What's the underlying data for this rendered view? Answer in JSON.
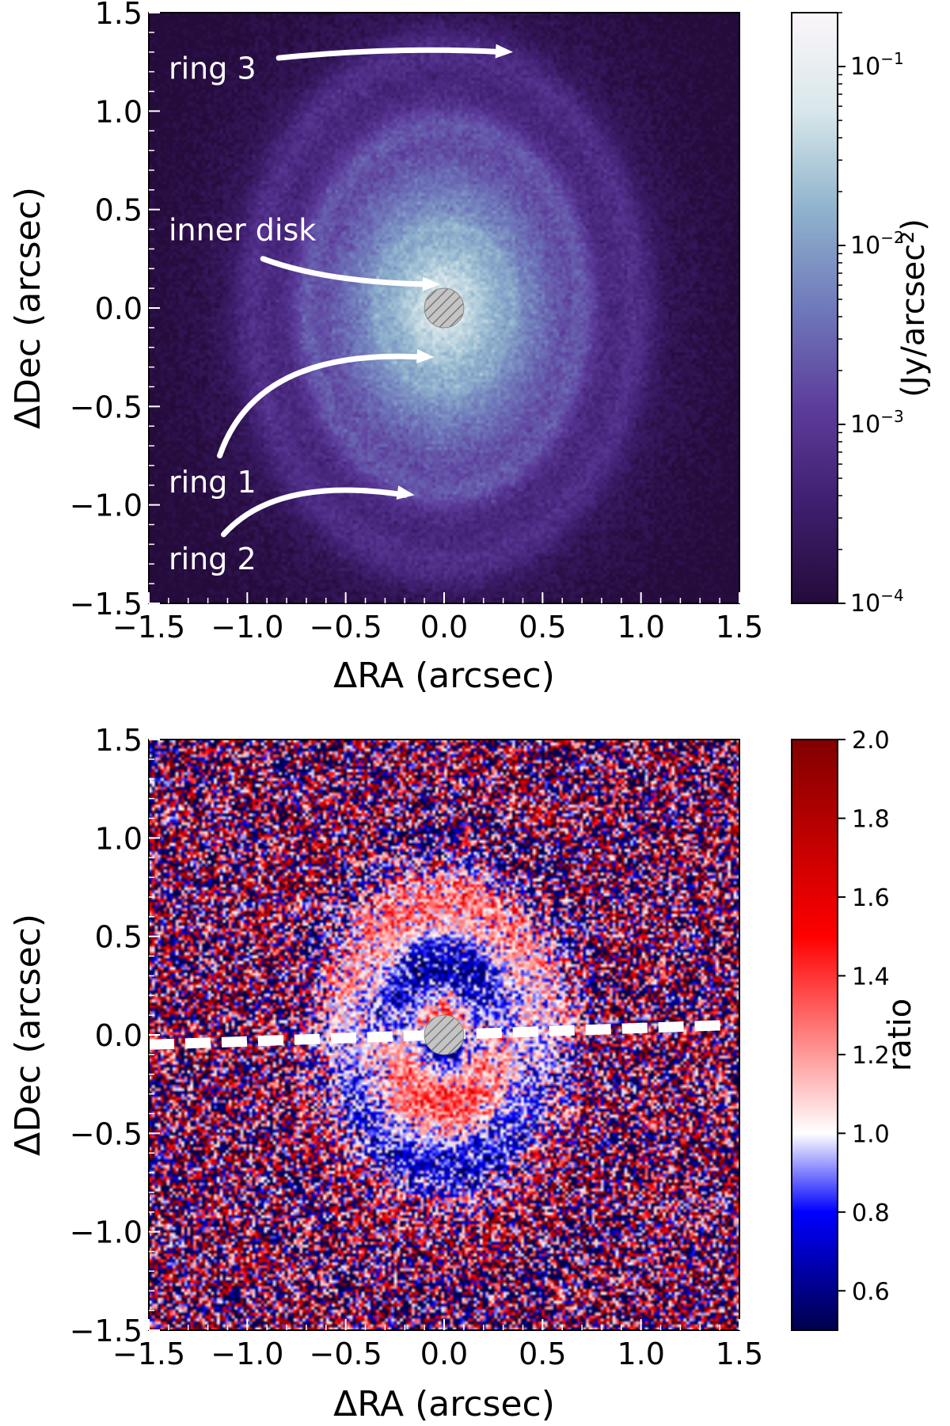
{
  "chart_data": [
    {
      "type": "heatmap",
      "panel": "top",
      "title": "",
      "xlabel": "ΔRA (arcsec)",
      "ylabel": "ΔDec (arcsec)",
      "xlim": [
        -1.5,
        1.5
      ],
      "ylim": [
        -1.5,
        1.5
      ],
      "xticks": [
        "−1.5",
        "−1.0",
        "−0.5",
        "0.0",
        "0.5",
        "1.0",
        "1.5"
      ],
      "yticks": [
        "−1.5",
        "−1.0",
        "−0.5",
        "0.0",
        "0.5",
        "1.0",
        "1.5"
      ],
      "tick_values": [
        -1.5,
        -1.0,
        -0.5,
        0.0,
        0.5,
        1.0,
        1.5
      ],
      "colorbar": {
        "label": "(Jy/arcsec²)",
        "scale": "log",
        "min": 0.0001,
        "max": 0.2,
        "ticks": [
          {
            "value": 0.1,
            "mantissa": "10",
            "exp": "−1"
          },
          {
            "value": 0.01,
            "mantissa": "10",
            "exp": "−2"
          },
          {
            "value": 0.001,
            "mantissa": "10",
            "exp": "−3"
          },
          {
            "value": 0.0001,
            "mantissa": "10",
            "exp": "−4"
          }
        ],
        "colors": [
          "#240b3a",
          "#3e1e6e",
          "#5d3d9c",
          "#6f79bb",
          "#8fb3cd",
          "#d8e7ea",
          "#fbf6fa"
        ]
      },
      "annotations": [
        {
          "text": "ring 3",
          "target": [
            0.35,
            1.3
          ]
        },
        {
          "text": "inner disk",
          "target": [
            -0.02,
            0.12
          ]
        },
        {
          "text": "ring 1",
          "target": [
            -0.05,
            -0.25
          ]
        },
        {
          "text": "ring 2",
          "target": [
            -0.15,
            -0.95
          ]
        }
      ],
      "features": {
        "coronagraph_radius_arcsec": 0.1,
        "rings": [
          {
            "name": "ring 1",
            "a_arcsec": 0.35,
            "b_arcsec": 0.42
          },
          {
            "name": "ring 2",
            "a_arcsec": 0.7,
            "b_arcsec": 0.93
          },
          {
            "name": "ring 3",
            "a_arcsec": 0.98,
            "b_arcsec": 1.3
          }
        ]
      }
    },
    {
      "type": "heatmap",
      "panel": "bottom",
      "title": "",
      "xlabel": "ΔRA (arcsec)",
      "ylabel": "ΔDec (arcsec)",
      "xlim": [
        -1.5,
        1.5
      ],
      "ylim": [
        -1.5,
        1.5
      ],
      "xticks": [
        "−1.5",
        "−1.0",
        "−0.5",
        "0.0",
        "0.5",
        "1.0",
        "1.5"
      ],
      "yticks": [
        "−1.5",
        "−1.0",
        "−0.5",
        "0.0",
        "0.5",
        "1.0",
        "1.5"
      ],
      "tick_values": [
        -1.5,
        -1.0,
        -0.5,
        0.0,
        0.5,
        1.0,
        1.5
      ],
      "colorbar": {
        "label": "ratio",
        "scale": "linear",
        "min": 0.5,
        "max": 2.0,
        "ticks": [
          {
            "value": 2.0,
            "label": "2.0"
          },
          {
            "value": 1.8,
            "label": "1.8"
          },
          {
            "value": 1.6,
            "label": "1.6"
          },
          {
            "value": 1.4,
            "label": "1.4"
          },
          {
            "value": 1.2,
            "label": "1.2"
          },
          {
            "value": 1.0,
            "label": "1.0"
          },
          {
            "value": 0.8,
            "label": "0.8"
          },
          {
            "value": 0.6,
            "label": "0.6"
          }
        ],
        "colors": [
          "#00004c",
          "#0000ff",
          "#ffffff",
          "#ff0000",
          "#800000"
        ],
        "stops": [
          0.0,
          0.2,
          0.333,
          0.667,
          1.0
        ]
      },
      "dashed_line": {
        "x": [
          -1.5,
          1.45
        ],
        "y": [
          -0.05,
          0.05
        ]
      },
      "features": {
        "coronagraph_radius_arcsec": 0.1
      }
    }
  ]
}
